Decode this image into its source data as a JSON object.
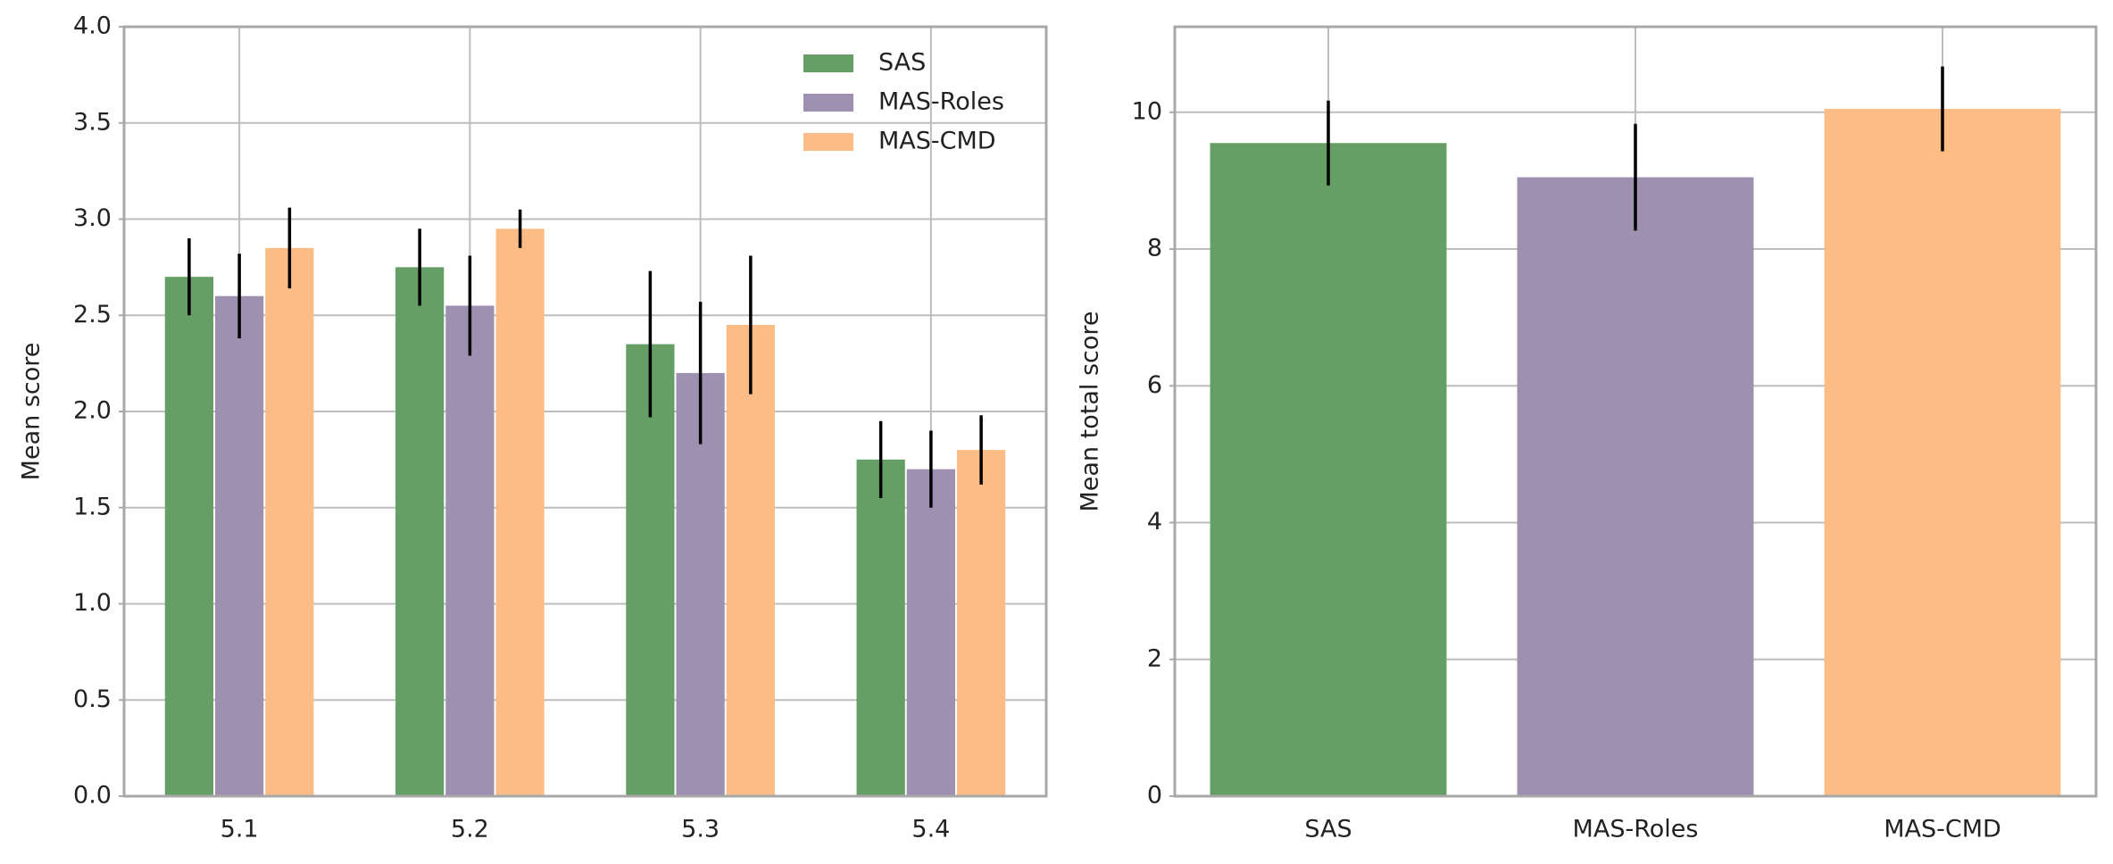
{
  "chart_data": [
    {
      "type": "grouped_bar",
      "ylabel": "Mean score",
      "categories": [
        "5.1",
        "5.2",
        "5.3",
        "5.4"
      ],
      "series": [
        {
          "name": "SAS",
          "color": "#669f66",
          "values": [
            2.7,
            2.75,
            2.35,
            1.75
          ],
          "yerr": [
            0.2,
            0.2,
            0.38,
            0.2
          ]
        },
        {
          "name": "MAS-Roles",
          "color": "#9e90b0",
          "values": [
            2.6,
            2.55,
            2.2,
            1.7
          ],
          "yerr": [
            0.22,
            0.26,
            0.37,
            0.2
          ]
        },
        {
          "name": "MAS-CMD",
          "color": "#fbbd85",
          "values": [
            2.85,
            2.95,
            2.45,
            1.8
          ],
          "yerr": [
            0.21,
            0.1,
            0.36,
            0.18
          ]
        }
      ],
      "ylim": [
        0,
        4
      ],
      "yticks": [
        {
          "value": 0,
          "label": "0.0"
        },
        0.5,
        {
          "value": 1,
          "label": "1.0"
        },
        1.5,
        {
          "value": 2,
          "label": "2.0"
        },
        2.5,
        {
          "value": 3,
          "label": "3.0"
        },
        3.5,
        {
          "value": 4,
          "label": "4.0"
        }
      ],
      "grid": true,
      "legend": "upper right"
    },
    {
      "type": "bar",
      "ylabel": "Mean total score",
      "categories": [
        "SAS",
        "MAS-Roles",
        "MAS-CMD"
      ],
      "values": [
        9.55,
        9.05,
        10.05
      ],
      "yerr": [
        0.62,
        0.78,
        0.62
      ],
      "colors": [
        "#669f66",
        "#9e90b0",
        "#fbbd85"
      ],
      "ylim": [
        0,
        11.25
      ],
      "yticks": [
        0,
        2,
        4,
        6,
        8,
        10
      ],
      "grid": true
    }
  ]
}
